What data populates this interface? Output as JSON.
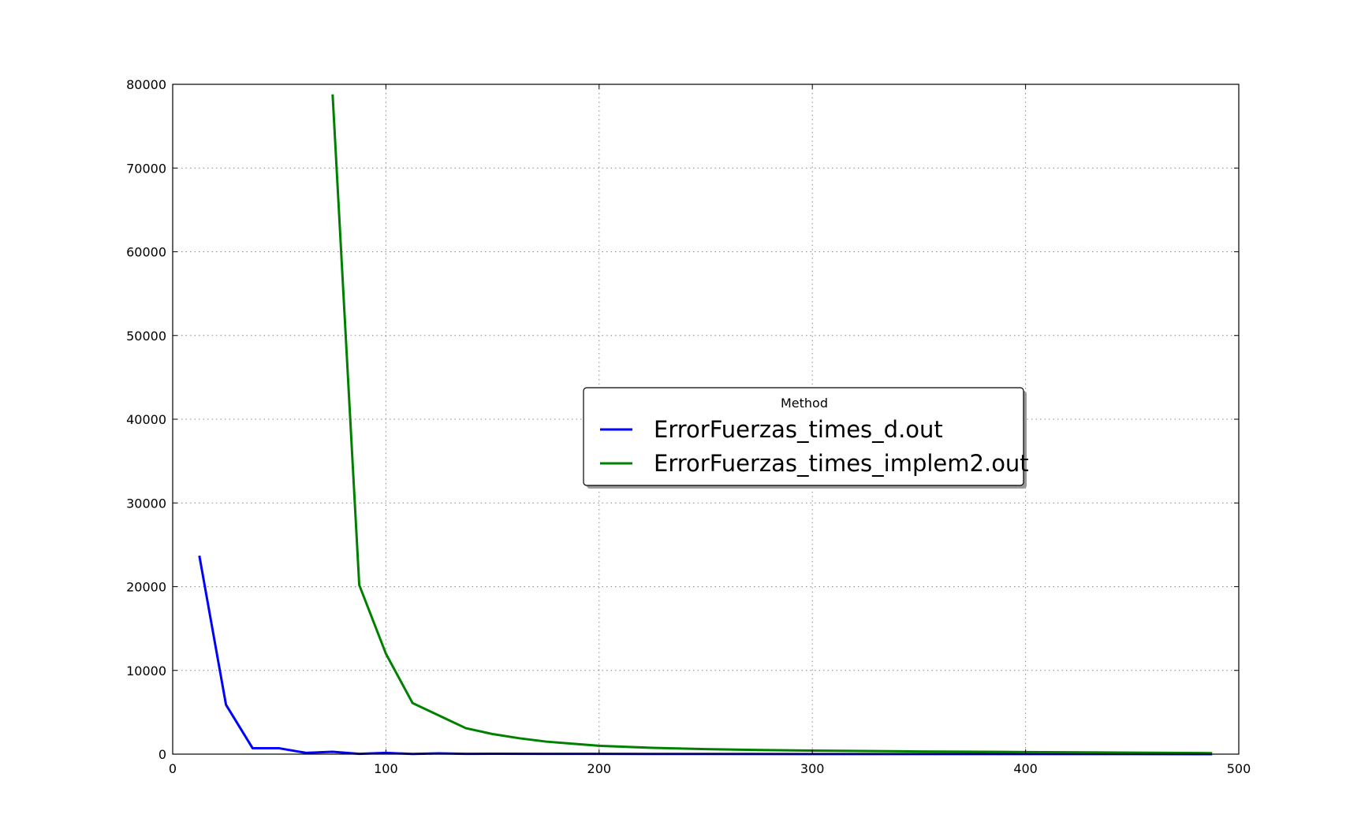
{
  "chart_data": {
    "type": "line",
    "title": "",
    "xlabel": "",
    "ylabel": "",
    "xlim": [
      0,
      500
    ],
    "ylim": [
      0,
      80000
    ],
    "x_ticks": [
      "0",
      "100",
      "200",
      "300",
      "400",
      "500"
    ],
    "y_ticks": [
      "0",
      "10000",
      "20000",
      "30000",
      "40000",
      "50000",
      "60000",
      "70000",
      "80000"
    ],
    "grid": true,
    "legend": {
      "title": "Method",
      "position": "center-right"
    },
    "series": [
      {
        "name": "ErrorFuerzas_times_d.out",
        "color": "#0000ff",
        "x": [
          12.5,
          25,
          37.5,
          50,
          62.5,
          75,
          87.5,
          100,
          112.5,
          125,
          137.5,
          150,
          175,
          200,
          225,
          250,
          300,
          350,
          400,
          450,
          487.5
        ],
        "y": [
          23700,
          5900,
          700,
          700,
          150,
          280,
          30,
          150,
          20,
          90,
          30,
          50,
          30,
          30,
          20,
          20,
          15,
          10,
          10,
          8,
          5
        ]
      },
      {
        "name": "ErrorFuerzas_times_implem2.out",
        "color": "#008000",
        "x": [
          75,
          87.5,
          100,
          112.5,
          125,
          137.5,
          150,
          162.5,
          175,
          187.5,
          200,
          225,
          250,
          275,
          300,
          350,
          400,
          450,
          487.5
        ],
        "y": [
          78800,
          20200,
          12000,
          6100,
          4600,
          3100,
          2400,
          1900,
          1500,
          1250,
          1000,
          750,
          600,
          500,
          420,
          320,
          250,
          180,
          120
        ]
      }
    ]
  }
}
